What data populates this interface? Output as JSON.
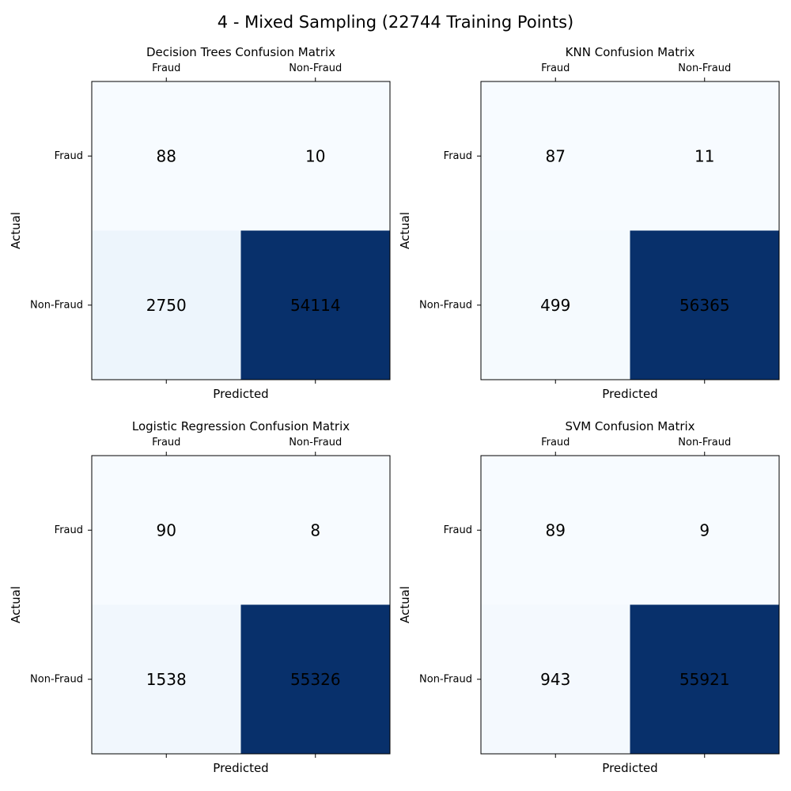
{
  "suptitle": "4 - Mixed Sampling (22744 Training Points)",
  "chart_data": [
    {
      "type": "heatmap",
      "title": "Decision Trees Confusion Matrix",
      "xlabel": "Predicted",
      "ylabel": "Actual",
      "x_categories": [
        "Fraud",
        "Non-Fraud"
      ],
      "y_categories": [
        "Fraud",
        "Non-Fraud"
      ],
      "values": [
        [
          88,
          10
        ],
        [
          2750,
          54114
        ]
      ],
      "colormap": "Blues",
      "x_ticks_position": "top"
    },
    {
      "type": "heatmap",
      "title": "KNN Confusion Matrix",
      "xlabel": "Predicted",
      "ylabel": "Actual",
      "x_categories": [
        "Fraud",
        "Non-Fraud"
      ],
      "y_categories": [
        "Fraud",
        "Non-Fraud"
      ],
      "values": [
        [
          87,
          11
        ],
        [
          499,
          56365
        ]
      ],
      "colormap": "Blues",
      "x_ticks_position": "top"
    },
    {
      "type": "heatmap",
      "title": "Logistic Regression Confusion Matrix",
      "xlabel": "Predicted",
      "ylabel": "Actual",
      "x_categories": [
        "Fraud",
        "Non-Fraud"
      ],
      "y_categories": [
        "Fraud",
        "Non-Fraud"
      ],
      "values": [
        [
          90,
          8
        ],
        [
          1538,
          55326
        ]
      ],
      "colormap": "Blues",
      "x_ticks_position": "top"
    },
    {
      "type": "heatmap",
      "title": "SVM Confusion Matrix",
      "xlabel": "Predicted",
      "ylabel": "Actual",
      "x_categories": [
        "Fraud",
        "Non-Fraud"
      ],
      "y_categories": [
        "Fraud",
        "Non-Fraud"
      ],
      "values": [
        [
          89,
          9
        ],
        [
          943,
          55921
        ]
      ],
      "colormap": "Blues",
      "x_ticks_position": "top"
    }
  ]
}
